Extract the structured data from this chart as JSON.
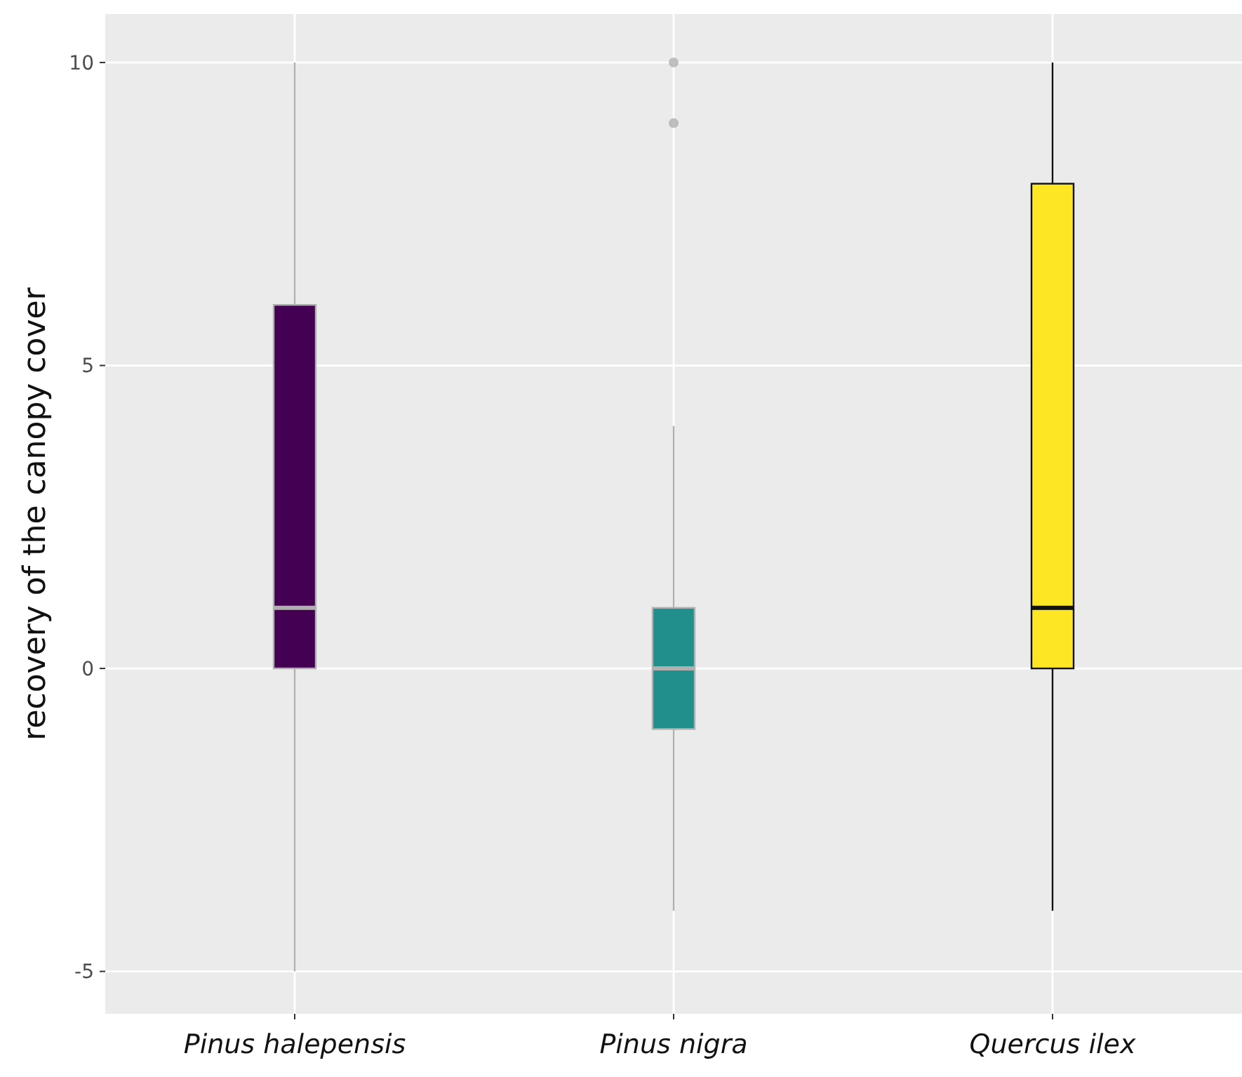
{
  "chart_data": {
    "type": "box",
    "ylabel": "recovery of the canopy cover",
    "categories": [
      "Pinus halepensis",
      "Pinus nigra",
      "Quercus ilex"
    ],
    "boxes": [
      {
        "low": -5,
        "q1": 0,
        "median": 1,
        "q3": 6,
        "high": 10
      },
      {
        "low": -4,
        "q1": -1,
        "median": 0,
        "q3": 1,
        "high": 4,
        "outliers": [
          9,
          10
        ]
      },
      {
        "low": -4,
        "q1": 0,
        "median": 1,
        "q3": 8,
        "high": 10
      }
    ],
    "colors": [
      "#440154",
      "#21908c",
      "#fde725"
    ],
    "ylim": [
      -5.7,
      10.8
    ],
    "yticks": [
      -5,
      0,
      5,
      10
    ],
    "grid": true
  }
}
